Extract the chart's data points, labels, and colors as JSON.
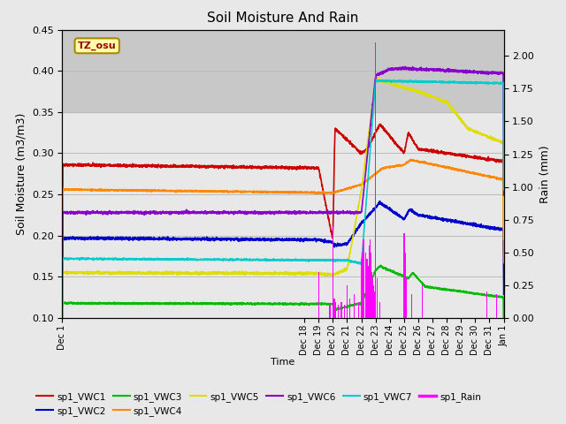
{
  "title": "Soil Moisture And Rain",
  "xlabel": "Time",
  "ylabel_left": "Soil Moisture (m3/m3)",
  "ylabel_right": "Rain (mm)",
  "station_label": "TZ_osu",
  "ylim_left": [
    0.1,
    0.45
  ],
  "ylim_right": [
    0.0,
    2.2
  ],
  "shaded_region": [
    0.35,
    0.45
  ],
  "xtick_labels": [
    "Dec 1",
    "Dec 18",
    "Dec 19",
    "Dec 20",
    "Dec 21",
    "Dec 22",
    "Dec 23",
    "Dec 24",
    "Dec 25",
    "Dec 26",
    "Dec 27",
    "Dec 28",
    "Dec 29",
    "Dec 30",
    "Dec 31",
    "Jan 1"
  ],
  "xtick_positions": [
    0,
    17,
    18,
    19,
    20,
    21,
    22,
    23,
    24,
    25,
    26,
    27,
    28,
    29,
    30,
    31
  ],
  "colors": {
    "VWC1": "#cc0000",
    "VWC2": "#0000cc",
    "VWC3": "#00bb00",
    "VWC4": "#ff8800",
    "VWC5": "#dddd00",
    "VWC6": "#8800cc",
    "VWC7": "#00cccc",
    "Rain": "#ff00ff"
  },
  "rain_times": [
    18.0,
    18.8,
    19.0,
    19.1,
    19.2,
    19.4,
    19.6,
    19.8,
    20.0,
    20.2,
    20.5,
    20.8,
    21.0,
    21.05,
    21.1,
    21.15,
    21.2,
    21.3,
    21.4,
    21.5,
    21.55,
    21.6,
    21.65,
    21.7,
    21.75,
    21.8,
    21.85,
    21.9,
    21.95,
    22.0,
    22.1,
    22.3,
    24.0,
    24.1,
    24.15,
    24.55,
    25.3,
    29.8,
    30.5
  ],
  "rain_values": [
    0.35,
    0.1,
    0.7,
    0.15,
    0.12,
    0.1,
    0.12,
    0.1,
    0.25,
    0.15,
    0.18,
    0.12,
    0.45,
    0.5,
    0.55,
    0.6,
    0.55,
    0.5,
    0.45,
    0.4,
    0.55,
    0.6,
    0.5,
    0.45,
    0.35,
    0.3,
    0.25,
    0.2,
    0.15,
    2.1,
    0.3,
    0.12,
    0.65,
    0.5,
    0.3,
    0.18,
    0.25,
    0.2,
    0.18
  ]
}
